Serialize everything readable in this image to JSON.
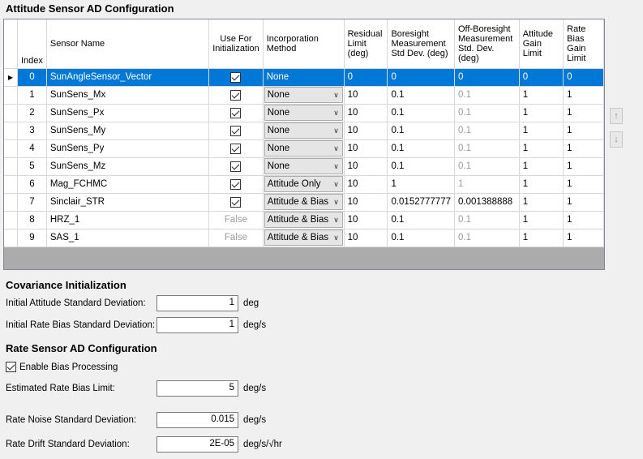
{
  "attitude": {
    "title": "Attitude Sensor AD Configuration",
    "headers": {
      "index": "Index",
      "sensor_name": "Sensor Name",
      "use_for_init": "Use For Initialization",
      "incorporation": "Incorporation Method",
      "residual": "Residual Limit (deg)",
      "boresight": "Boresight Measurement Std Dev. (deg)",
      "off_boresight": "Off-Boresight Measurement Std. Dev. (deg)",
      "att_gain": "Attitude Gain Limit",
      "rate_gain": "Rate Bias Gain Limit"
    },
    "rows": [
      {
        "index": "0",
        "name": "SunAngleSensor_Vector",
        "use_init": true,
        "init_text": "",
        "method": "None",
        "residual": "0",
        "boresight": "0",
        "off_boresight": "0",
        "att_gain": "0",
        "rate_gain": "0",
        "selected": true
      },
      {
        "index": "1",
        "name": "SunSens_Mx",
        "use_init": true,
        "init_text": "",
        "method": "None",
        "residual": "10",
        "boresight": "0.1",
        "off_boresight": "0.1",
        "att_gain": "1",
        "rate_gain": "1"
      },
      {
        "index": "2",
        "name": "SunSens_Px",
        "use_init": true,
        "init_text": "",
        "method": "None",
        "residual": "10",
        "boresight": "0.1",
        "off_boresight": "0.1",
        "att_gain": "1",
        "rate_gain": "1"
      },
      {
        "index": "3",
        "name": "SunSens_My",
        "use_init": true,
        "init_text": "",
        "method": "None",
        "residual": "10",
        "boresight": "0.1",
        "off_boresight": "0.1",
        "att_gain": "1",
        "rate_gain": "1"
      },
      {
        "index": "4",
        "name": "SunSens_Py",
        "use_init": true,
        "init_text": "",
        "method": "None",
        "residual": "10",
        "boresight": "0.1",
        "off_boresight": "0.1",
        "att_gain": "1",
        "rate_gain": "1"
      },
      {
        "index": "5",
        "name": "SunSens_Mz",
        "use_init": true,
        "init_text": "",
        "method": "None",
        "residual": "10",
        "boresight": "0.1",
        "off_boresight": "0.1",
        "att_gain": "1",
        "rate_gain": "1"
      },
      {
        "index": "6",
        "name": "Mag_FCHMC",
        "use_init": true,
        "init_text": "",
        "method": "Attitude Only",
        "residual": "10",
        "boresight": "1",
        "off_boresight": "1",
        "att_gain": "1",
        "rate_gain": "1"
      },
      {
        "index": "7",
        "name": "Sinclair_STR",
        "use_init": true,
        "init_text": "",
        "method": "Attitude & Bias",
        "residual": "10",
        "boresight": "0.0152777777",
        "off_boresight": "0.001388888",
        "att_gain": "1",
        "rate_gain": "1",
        "off_dark": true
      },
      {
        "index": "8",
        "name": "HRZ_1",
        "use_init": false,
        "init_text": "False",
        "method": "Attitude & Bias",
        "residual": "10",
        "boresight": "0.1",
        "off_boresight": "0.1",
        "att_gain": "1",
        "rate_gain": "1"
      },
      {
        "index": "9",
        "name": "SAS_1",
        "use_init": false,
        "init_text": "False",
        "method": "Attitude & Bias",
        "residual": "10",
        "boresight": "0.1",
        "off_boresight": "0.1",
        "att_gain": "1",
        "rate_gain": "1"
      }
    ],
    "move_up": "↑",
    "move_down": "↓"
  },
  "covariance": {
    "title": "Covariance Initialization",
    "att_std_label": "Initial Attitude Standard Deviation:",
    "att_std_value": "1",
    "att_std_unit": "deg",
    "rate_std_label": "Initial Rate Bias Standard Deviation:",
    "rate_std_value": "1",
    "rate_std_unit": "deg/s"
  },
  "rate_sensor": {
    "title": "Rate Sensor AD Configuration",
    "enable_bias_label": "Enable Bias Processing",
    "enable_bias_checked": true,
    "bias_limit_label": "Estimated Rate Bias Limit:",
    "bias_limit_value": "5",
    "bias_limit_unit": "deg/s",
    "noise_label": "Rate Noise Standard Deviation:",
    "noise_value": "0.015",
    "noise_unit": "deg/s",
    "drift_label": "Rate Drift Standard Deviation:",
    "drift_value": "2E-05",
    "drift_unit": "deg/s/√hr"
  }
}
